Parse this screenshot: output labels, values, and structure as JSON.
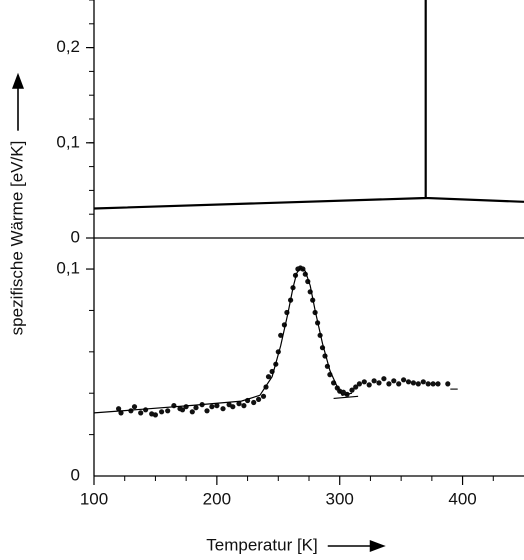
{
  "chart_data": [
    {
      "type": "line",
      "panel": "top",
      "ylabel": "spezifische Wärme [eV/K]",
      "xlim": [
        100,
        450
      ],
      "ylim": [
        0,
        0.25
      ],
      "yticks": [
        {
          "value": 0,
          "label": "0"
        },
        {
          "value": 0.1,
          "label": "0,1"
        },
        {
          "value": 0.2,
          "label": "0,2"
        }
      ],
      "series": [
        {
          "x": [
            100,
            370,
            370,
            370,
            450
          ],
          "y": [
            0.031,
            0.042,
            0.25,
            0.042,
            0.038
          ]
        }
      ]
    },
    {
      "type": "scatter",
      "panel": "bottom",
      "xlabel": "Temperatur [K]",
      "xlim": [
        100,
        450
      ],
      "ylim": [
        0,
        0.115
      ],
      "xticks": [
        {
          "value": 100,
          "label": "100"
        },
        {
          "value": 200,
          "label": "200"
        },
        {
          "value": 300,
          "label": "300"
        },
        {
          "value": 400,
          "label": "400"
        }
      ],
      "yticks": [
        {
          "value": 0,
          "label": "0"
        },
        {
          "value": 0.1,
          "label": "0,1"
        }
      ],
      "series": [
        {
          "kind": "points",
          "x": [
            120,
            122,
            130,
            133,
            138,
            142,
            147,
            150,
            155,
            160,
            165,
            170,
            172,
            175,
            180,
            183,
            188,
            192,
            196,
            200,
            205,
            210,
            213,
            218,
            222,
            225,
            230,
            234,
            238,
            240,
            242,
            245,
            248,
            250,
            252,
            255,
            257,
            260,
            262,
            264,
            266,
            268,
            270,
            272,
            274,
            276,
            278,
            280,
            282,
            284,
            286,
            288,
            290,
            292,
            295,
            298,
            300,
            303,
            306,
            310,
            313,
            316,
            320,
            324,
            328,
            332,
            336,
            340,
            344,
            348,
            352,
            356,
            360,
            364,
            368,
            372,
            376,
            380,
            388
          ],
          "y": [
            0.0325,
            0.0305,
            0.0315,
            0.0335,
            0.0305,
            0.032,
            0.03,
            0.0295,
            0.031,
            0.0315,
            0.034,
            0.0325,
            0.032,
            0.0335,
            0.031,
            0.033,
            0.0345,
            0.0315,
            0.0335,
            0.034,
            0.0325,
            0.0345,
            0.0335,
            0.035,
            0.034,
            0.0365,
            0.0355,
            0.037,
            0.0385,
            0.043,
            0.048,
            0.0505,
            0.054,
            0.06,
            0.068,
            0.073,
            0.079,
            0.085,
            0.091,
            0.097,
            0.1,
            0.1005,
            0.1,
            0.0975,
            0.094,
            0.089,
            0.085,
            0.079,
            0.074,
            0.068,
            0.062,
            0.058,
            0.053,
            0.049,
            0.045,
            0.0425,
            0.041,
            0.0405,
            0.0395,
            0.0415,
            0.043,
            0.0445,
            0.0455,
            0.044,
            0.046,
            0.045,
            0.047,
            0.0445,
            0.046,
            0.0445,
            0.0465,
            0.0455,
            0.045,
            0.0445,
            0.0455,
            0.0445,
            0.0445,
            0.0445,
            0.0445
          ]
        },
        {
          "kind": "fit",
          "x": [
            100,
            140,
            180,
            220,
            235,
            245,
            252,
            258,
            262,
            265,
            268,
            272,
            276,
            280,
            286,
            292,
            298,
            302,
            310
          ],
          "y": [
            0.0305,
            0.0323,
            0.0341,
            0.0362,
            0.039,
            0.048,
            0.063,
            0.079,
            0.091,
            0.098,
            0.1005,
            0.099,
            0.092,
            0.08,
            0.064,
            0.051,
            0.043,
            0.039,
            0.04
          ]
        },
        {
          "kind": "baseline",
          "x": [
            295,
            315
          ],
          "y": [
            0.0375,
            0.0385
          ]
        },
        {
          "kind": "baseline",
          "x": [
            390,
            396
          ],
          "y": [
            0.042,
            0.042
          ]
        }
      ]
    }
  ]
}
